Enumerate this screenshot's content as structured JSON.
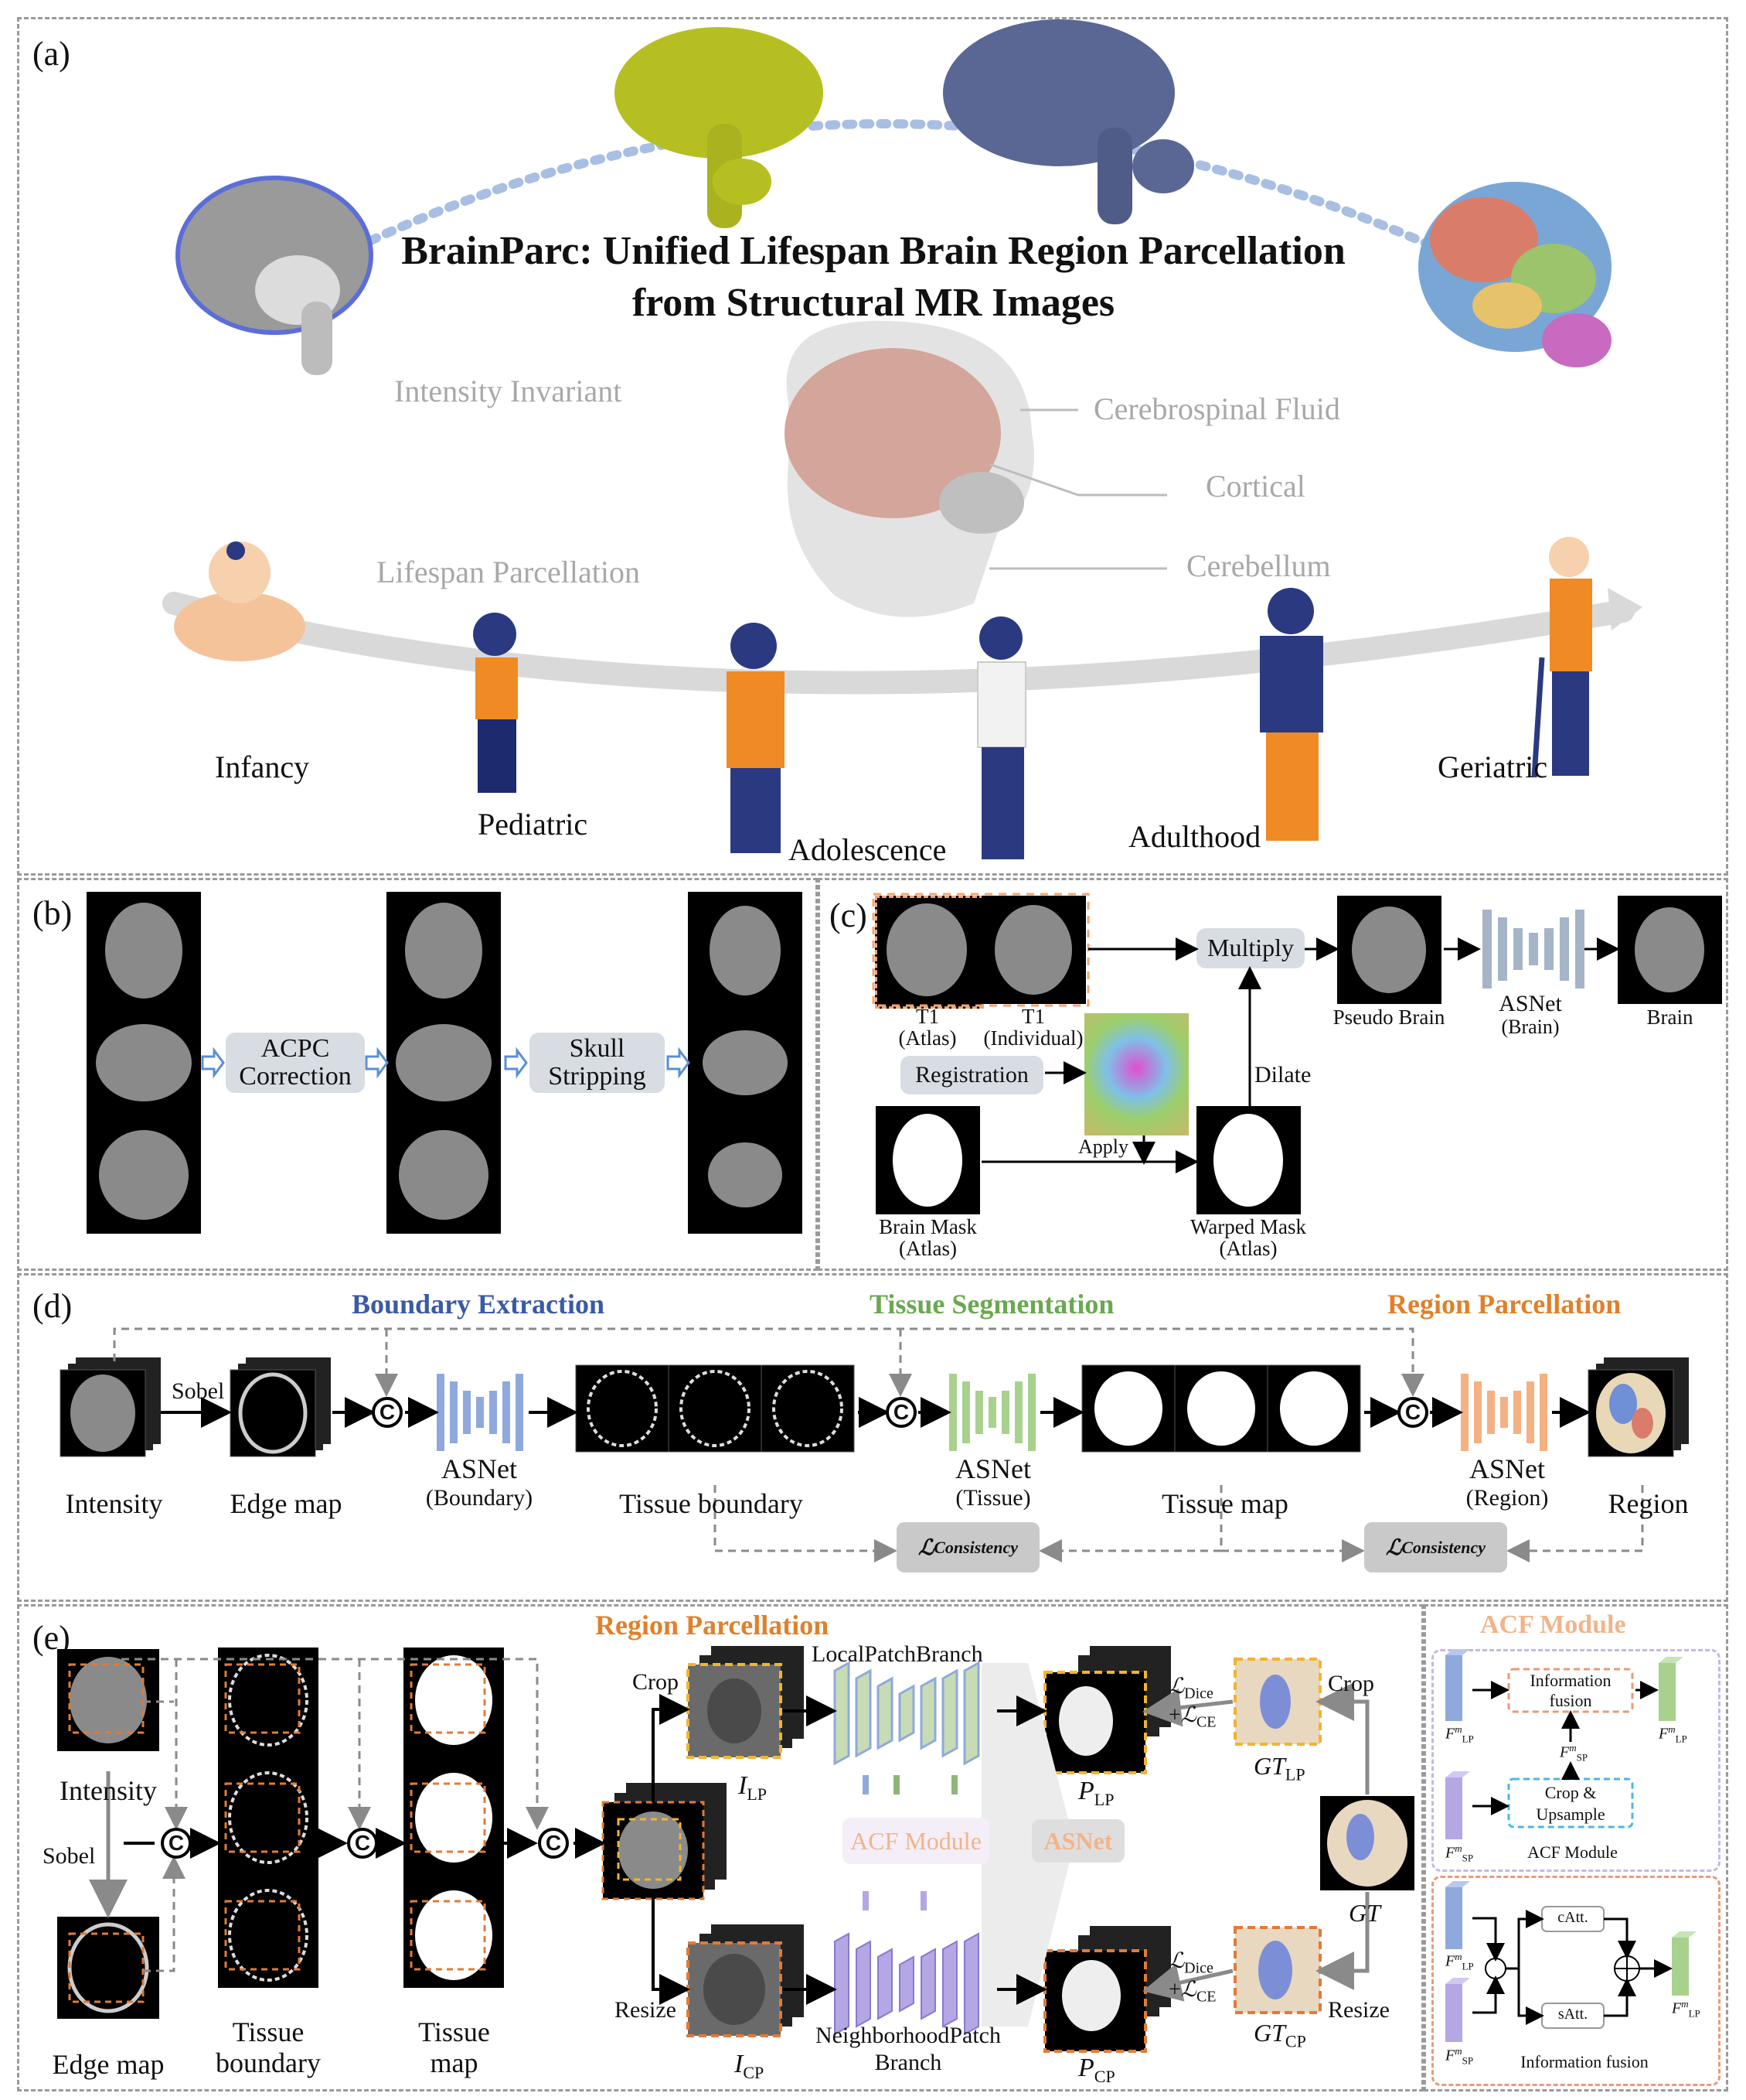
{
  "panels": {
    "a": "(a)",
    "b": "(b)",
    "c": "(c)",
    "d": "(d)",
    "e": "(e)"
  },
  "panel_a": {
    "title_line1": "BrainParc: Unified Lifespan Brain Region Parcellation",
    "title_line2": "from Structural MR Images",
    "intensity_invariant": "Intensity Invariant",
    "lifespan_parcellation": "Lifespan Parcellation",
    "csf": "Cerebrospinal Fluid",
    "cortical": "Cortical",
    "cerebellum": "Cerebellum",
    "stages": [
      "Infancy",
      "Pediatric",
      "Adolescence",
      "Adulthood",
      "Geriatric"
    ]
  },
  "panel_b": {
    "acpc_line1": "ACPC",
    "acpc_line2": "Correction",
    "skull_line1": "Skull",
    "skull_line2": "Stripping"
  },
  "panel_c": {
    "t1_atlas_1": "T1",
    "t1_atlas_2": "(Atlas)",
    "t1_indiv_1": "T1",
    "t1_indiv_2": "(Individual)",
    "registration": "Registration",
    "multiply": "Multiply",
    "dilate": "Dilate",
    "apply": "Apply",
    "pseudo_brain": "Pseudo Brain",
    "asnet": "ASNet",
    "asnet_brain": "(Brain)",
    "brain": "Brain",
    "brain_mask_1": "Brain Mask",
    "brain_mask_2": "(Atlas)",
    "warped_mask_1": "Warped Mask",
    "warped_mask_2": "(Atlas)"
  },
  "panel_d": {
    "boundary_extraction": "Boundary Extraction",
    "tissue_segmentation": "Tissue Segmentation",
    "region_parcellation": "Region Parcellation",
    "sobel": "Sobel",
    "intensity": "Intensity",
    "edge_map": "Edge map",
    "asnet": "ASNet",
    "asnet_boundary": "(Boundary)",
    "tissue_boundary": "Tissue boundary",
    "asnet_tissue": "(Tissue)",
    "tissue_map": "Tissue map",
    "asnet_region": "(Region)",
    "region": "Region",
    "loss_symbol": "ℒ",
    "loss_sub": "Consistency",
    "concat": "C"
  },
  "panel_e": {
    "region_parcellation": "Region Parcellation",
    "intensity": "Intensity",
    "sobel": "Sobel",
    "edge_map": "Edge map",
    "tissue_boundary_1": "Tissue",
    "tissue_boundary_2": "boundary",
    "tissue_map_1": "Tissue",
    "tissue_map_2": "map",
    "crop": "Crop",
    "resize": "Resize",
    "local_patch_branch": "LocalPatchBranch",
    "neighborhood_patch_1": "NeighborhoodPatch",
    "neighborhood_patch_2": "Branch",
    "acf_module": "ACF Module",
    "asnet": "ASNet",
    "i_lp": "I",
    "i_lp_sub": "LP",
    "i_cp": "I",
    "i_cp_sub": "CP",
    "p_lp": "P",
    "p_lp_sub": "LP",
    "p_cp": "P",
    "p_cp_sub": "CP",
    "l_dice": "Dice",
    "l_ce": "CE",
    "gt": "GT",
    "gt_lp_sub": "LP",
    "gt_cp_sub": "CP",
    "concat": "C"
  },
  "acf": {
    "title": "ACF Module",
    "information_fusion_1": "Information",
    "information_fusion_2": "fusion",
    "crop_upsample_1": "Crop &",
    "crop_upsample_2": "Upsample",
    "module_label": "ACF Module",
    "catt": "cAtt.",
    "satt": "sAtt.",
    "info_fusion_label": "Information fusion",
    "f_lp": "F",
    "f_sp": "F",
    "sub_lp": "LP",
    "sub_sp": "SP",
    "sup_m": "m"
  },
  "colors": {
    "boundary": "#3a5aa6",
    "tissue": "#6aa84f",
    "region": "#e0802a",
    "acf_title": "#f2b48a",
    "unet_blue": "#8fa9dc",
    "unet_green": "#a9d18e",
    "unet_orange": "#f4b183",
    "unet_gray": "#a6b4c8",
    "dashed_gray": "#9a9a9a",
    "orange_box": "#e07b39",
    "yellow_box": "#f2b430"
  }
}
